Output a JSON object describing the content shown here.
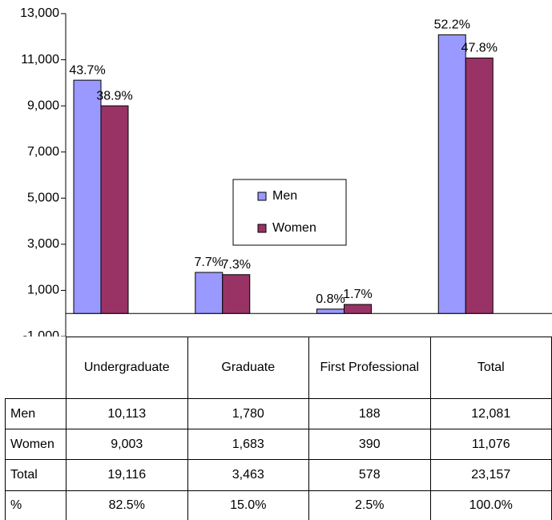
{
  "chart_data": {
    "type": "bar",
    "categories": [
      "Undergraduate",
      "Graduate",
      "First Professional",
      "Total"
    ],
    "series": [
      {
        "name": "Men",
        "color": "#9999ff",
        "values": [
          10113,
          1780,
          188,
          12081
        ],
        "share_labels": [
          "43.7%",
          "7.7%",
          "0.8%",
          "52.2%"
        ]
      },
      {
        "name": "Women",
        "color": "#993366",
        "values": [
          9003,
          1683,
          390,
          11076
        ],
        "share_labels": [
          "38.9%",
          "7.3%",
          "1.7%",
          "47.8%"
        ]
      }
    ],
    "ylim": [
      -1000,
      13000
    ],
    "yticks": [
      {
        "value": -1000,
        "label": "-1,000"
      },
      {
        "value": 1000,
        "label": "1,000"
      },
      {
        "value": 3000,
        "label": "3,000"
      },
      {
        "value": 5000,
        "label": "5,000"
      },
      {
        "value": 7000,
        "label": "7,000"
      },
      {
        "value": 9000,
        "label": "9,000"
      },
      {
        "value": 11000,
        "label": "11,000"
      },
      {
        "value": 13000,
        "label": "13,000"
      }
    ],
    "grid": false
  },
  "table": {
    "rows": [
      [
        "Men",
        "10,113",
        "1,780",
        "188",
        "12,081"
      ],
      [
        "Women",
        "9,003",
        "1,683",
        "390",
        "11,076"
      ],
      [
        "Total",
        "19,116",
        "3,463",
        "578",
        "23,157"
      ],
      [
        "%",
        "82.5%",
        "15.0%",
        "2.5%",
        "100.0%"
      ]
    ]
  }
}
